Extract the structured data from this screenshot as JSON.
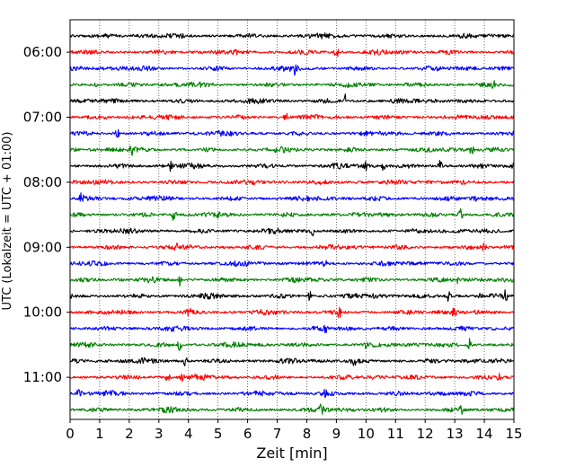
{
  "chart_data": {
    "type": "line",
    "subtype": "helicorder",
    "xlabel": "Zeit  [min]",
    "ylabel": "UTC (Lokalzeit = UTC + 01:00)",
    "xlim": [
      0,
      15
    ],
    "x_ticks": [
      "0",
      "1",
      "2",
      "3",
      "4",
      "5",
      "6",
      "7",
      "8",
      "9",
      "10",
      "11",
      "12",
      "13",
      "14",
      "15"
    ],
    "y_tick_labels": [
      "06:00",
      "07:00",
      "08:00",
      "09:00",
      "10:00",
      "11:00"
    ],
    "grid": "vertical-dotted",
    "trace_colors": [
      "#000000",
      "#ff0000",
      "#0000ff",
      "#008000"
    ],
    "traces": [
      {
        "start": "05:45",
        "spikes": []
      },
      {
        "start": "06:00",
        "spikes": [
          9.0
        ]
      },
      {
        "start": "06:15",
        "spikes": [
          7.6
        ]
      },
      {
        "start": "06:30",
        "spikes": [
          0.9,
          14.3
        ]
      },
      {
        "start": "06:45",
        "spikes": [
          9.3
        ]
      },
      {
        "start": "07:00",
        "spikes": [
          7.3
        ]
      },
      {
        "start": "07:15",
        "spikes": [
          1.6
        ]
      },
      {
        "start": "07:30",
        "spikes": [
          2.1,
          13.6
        ]
      },
      {
        "start": "07:45",
        "spikes": [
          3.4,
          10.0,
          10.6,
          12.5,
          15.0
        ]
      },
      {
        "start": "08:00",
        "spikes": [
          5.9
        ]
      },
      {
        "start": "08:15",
        "spikes": [
          0.4,
          13.7
        ]
      },
      {
        "start": "08:30",
        "spikes": [
          3.5,
          13.2
        ]
      },
      {
        "start": "08:45",
        "spikes": [
          8.2
        ]
      },
      {
        "start": "09:00",
        "spikes": [
          3.6,
          14.0
        ]
      },
      {
        "start": "09:15",
        "spikes": [
          8.6
        ]
      },
      {
        "start": "09:30",
        "spikes": [
          3.7,
          13.1
        ]
      },
      {
        "start": "09:45",
        "spikes": [
          8.1,
          10.3,
          12.8,
          13.9,
          14.7
        ]
      },
      {
        "start": "10:00",
        "spikes": [
          4.0,
          9.1,
          13.0
        ]
      },
      {
        "start": "10:15",
        "spikes": [
          8.6
        ]
      },
      {
        "start": "10:30",
        "spikes": [
          3.7,
          10.0,
          13.5
        ]
      },
      {
        "start": "10:45",
        "spikes": [
          3.9,
          9.6
        ]
      },
      {
        "start": "11:00",
        "spikes": [
          3.3,
          3.8,
          14.5
        ]
      },
      {
        "start": "11:15",
        "spikes": [
          0.3,
          8.6
        ]
      },
      {
        "start": "11:30",
        "spikes": [
          8.5,
          13.2
        ]
      }
    ]
  }
}
